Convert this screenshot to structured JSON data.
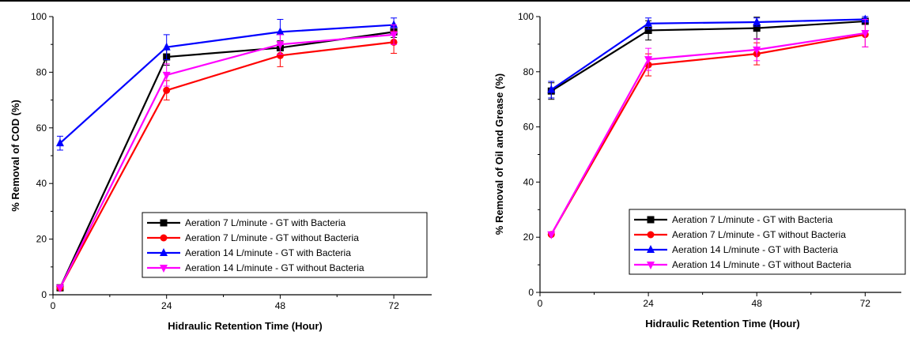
{
  "chart_data": [
    {
      "type": "line",
      "xlabel": "Hidraulic Retention Time (Hour)",
      "ylabel": "% Removal of COD (%)",
      "xlim": [
        0,
        80
      ],
      "ylim": [
        0,
        100
      ],
      "xticks": [
        "0",
        "24",
        "48",
        "72"
      ],
      "yticks": [
        "0",
        "20",
        "40",
        "60",
        "80",
        "100"
      ],
      "legend_position": "bottom-right",
      "series": [
        {
          "name": "Aeration 7  L/minute - GT with Bacteria",
          "color": "#000000",
          "marker": "square",
          "x": [
            1.5,
            24,
            48,
            72
          ],
          "y": [
            2.5,
            85.5,
            88.8,
            94.5
          ],
          "err": [
            0,
            3,
            2.5,
            2
          ]
        },
        {
          "name": "Aeration 7 L/minute - GT without Bacteria",
          "color": "#ff0000",
          "marker": "circle",
          "x": [
            1.5,
            24,
            48,
            72
          ],
          "y": [
            2.5,
            73.5,
            86.0,
            90.8
          ],
          "err": [
            0,
            3.5,
            4,
            4
          ]
        },
        {
          "name": "Aeration 14  L/minute - GT with Bacteria",
          "color": "#0000ff",
          "marker": "triangle-up",
          "x": [
            1.5,
            24,
            48,
            72
          ],
          "y": [
            54.5,
            89.0,
            94.5,
            97.0
          ],
          "err": [
            2.5,
            4.5,
            4.5,
            2.5
          ]
        },
        {
          "name": "Aeration 14 L/minute - GT without Bacteria",
          "color": "#ff00ff",
          "marker": "triangle-down",
          "x": [
            1.5,
            24,
            48,
            72
          ],
          "y": [
            2.5,
            79.0,
            90.0,
            93.5
          ],
          "err": [
            0,
            4,
            3.5,
            3.5
          ]
        }
      ]
    },
    {
      "type": "line",
      "xlabel": "Hidraulic Retention Time (Hour)",
      "ylabel": "% Removal of Oil and Grease (%)",
      "xlim": [
        0,
        80
      ],
      "ylim": [
        0,
        100
      ],
      "xticks": [
        "0",
        "24",
        "48",
        "72"
      ],
      "yticks": [
        "0",
        "20",
        "40",
        "60",
        "80",
        "100"
      ],
      "legend_position": "bottom-right",
      "series": [
        {
          "name": "Aeration 7  L/minute - GT with Bacteria",
          "color": "#000000",
          "marker": "square",
          "x": [
            2.5,
            24,
            48,
            72
          ],
          "y": [
            73.0,
            95.0,
            95.8,
            98.3
          ],
          "err": [
            3,
            3.5,
            4,
            1
          ]
        },
        {
          "name": "Aeration 7 L/minute - GT without Bacteria",
          "color": "#ff0000",
          "marker": "circle",
          "x": [
            2.5,
            24,
            48,
            72
          ],
          "y": [
            21.0,
            82.5,
            86.5,
            93.5
          ],
          "err": [
            0,
            4,
            4,
            4.5
          ]
        },
        {
          "name": "Aeration 14  L/minute - GT with Bacteria",
          "color": "#0000ff",
          "marker": "triangle-up",
          "x": [
            2.5,
            24,
            48,
            72
          ],
          "y": [
            73.5,
            97.5,
            98.0,
            99.0
          ],
          "err": [
            3,
            2,
            1.5,
            1
          ]
        },
        {
          "name": "Aeration 14 L/minute - GT without Bacteria",
          "color": "#ff00ff",
          "marker": "triangle-down",
          "x": [
            2.5,
            24,
            48,
            72
          ],
          "y": [
            21.0,
            84.5,
            88.0,
            94.0
          ],
          "err": [
            0,
            4,
            4,
            5
          ]
        }
      ]
    }
  ]
}
